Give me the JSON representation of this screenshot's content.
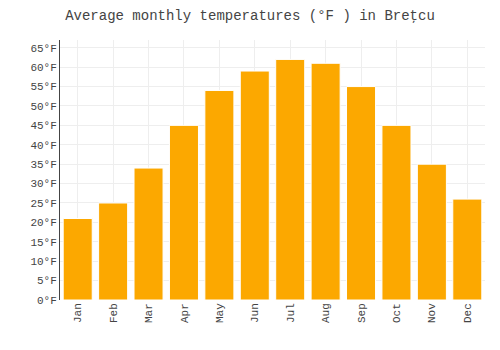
{
  "chart_data": {
    "type": "bar",
    "title": "Average monthly temperatures (°F ) in Breţcu",
    "categories": [
      "Jan",
      "Feb",
      "Mar",
      "Apr",
      "May",
      "Jun",
      "Jul",
      "Aug",
      "Sep",
      "Oct",
      "Nov",
      "Dec"
    ],
    "values": [
      21,
      25,
      34,
      45,
      54,
      59,
      62,
      61,
      55,
      45,
      35,
      26
    ],
    "color": "#FCA800",
    "ylim": [
      0,
      67
    ],
    "yticks": [
      {
        "value": 0,
        "label": "0°F"
      },
      {
        "value": 5,
        "label": "5°F"
      },
      {
        "value": 10,
        "label": "10°F"
      },
      {
        "value": 15,
        "label": "15°F"
      },
      {
        "value": 20,
        "label": "20°F"
      },
      {
        "value": 25,
        "label": "25°F"
      },
      {
        "value": 30,
        "label": "30°F"
      },
      {
        "value": 35,
        "label": "35°F"
      },
      {
        "value": 40,
        "label": "40°F"
      },
      {
        "value": 45,
        "label": "45°F"
      },
      {
        "value": 50,
        "label": "50°F"
      },
      {
        "value": 55,
        "label": "55°F"
      },
      {
        "value": 60,
        "label": "60°F"
      },
      {
        "value": 65,
        "label": "65°F"
      }
    ],
    "grid": true
  }
}
